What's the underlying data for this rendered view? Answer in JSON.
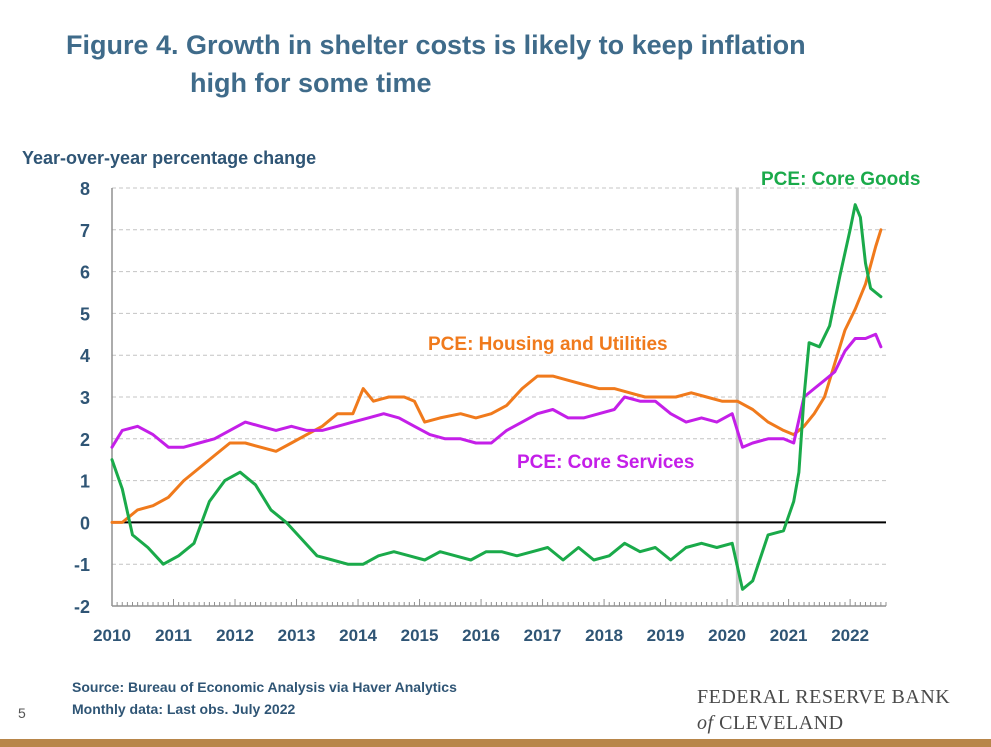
{
  "header": {
    "title_line1": "Figure 4. Growth in shelter costs is likely to keep inflation",
    "title_line2": "high for some time"
  },
  "footer": {
    "source": "Source: Bureau of Economic Analysis via Haver Analytics",
    "monthly": "Monthly data: Last obs. July 2022",
    "page_number": "5",
    "brand_line1": "FEDERAL RESERVE BANK",
    "brand_of": "of",
    "brand_line2": "CLEVELAND"
  },
  "chart_data": {
    "type": "line",
    "ylabel": "Year-over-year percentage change",
    "ylim": [
      -2,
      8
    ],
    "yticks": [
      -2,
      -1,
      0,
      1,
      2,
      3,
      4,
      5,
      6,
      7,
      8
    ],
    "xlim": [
      "2010-01",
      "2022-07"
    ],
    "xticks": [
      "2010",
      "2011",
      "2012",
      "2013",
      "2014",
      "2015",
      "2016",
      "2017",
      "2018",
      "2019",
      "2020",
      "2021",
      "2022"
    ],
    "grid": "horizontal dashed",
    "reference_line": {
      "y": 0,
      "color": "#000000"
    },
    "vertical_marker": {
      "x": "2020-03",
      "color": "#c8c8c8"
    },
    "series": [
      {
        "name": "PCE: Housing and Utilities",
        "color": "#f07a1c",
        "points": [
          [
            "2010-01",
            0.0
          ],
          [
            "2010-03",
            0.0
          ],
          [
            "2010-06",
            0.3
          ],
          [
            "2010-09",
            0.4
          ],
          [
            "2010-12",
            0.6
          ],
          [
            "2011-03",
            1.0
          ],
          [
            "2011-06",
            1.3
          ],
          [
            "2011-09",
            1.6
          ],
          [
            "2011-12",
            1.9
          ],
          [
            "2012-03",
            1.9
          ],
          [
            "2012-06",
            1.8
          ],
          [
            "2012-09",
            1.7
          ],
          [
            "2012-12",
            1.9
          ],
          [
            "2013-03",
            2.1
          ],
          [
            "2013-06",
            2.3
          ],
          [
            "2013-09",
            2.6
          ],
          [
            "2013-12",
            2.6
          ],
          [
            "2014-02",
            3.2
          ],
          [
            "2014-04",
            2.9
          ],
          [
            "2014-07",
            3.0
          ],
          [
            "2014-10",
            3.0
          ],
          [
            "2014-12",
            2.9
          ],
          [
            "2015-02",
            2.4
          ],
          [
            "2015-05",
            2.5
          ],
          [
            "2015-09",
            2.6
          ],
          [
            "2015-12",
            2.5
          ],
          [
            "2016-03",
            2.6
          ],
          [
            "2016-06",
            2.8
          ],
          [
            "2016-09",
            3.2
          ],
          [
            "2016-12",
            3.5
          ],
          [
            "2017-03",
            3.5
          ],
          [
            "2017-06",
            3.4
          ],
          [
            "2017-09",
            3.3
          ],
          [
            "2017-12",
            3.2
          ],
          [
            "2018-03",
            3.2
          ],
          [
            "2018-06",
            3.1
          ],
          [
            "2018-09",
            3.0
          ],
          [
            "2018-12",
            3.0
          ],
          [
            "2019-03",
            3.0
          ],
          [
            "2019-06",
            3.1
          ],
          [
            "2019-09",
            3.0
          ],
          [
            "2019-12",
            2.9
          ],
          [
            "2020-03",
            2.9
          ],
          [
            "2020-06",
            2.7
          ],
          [
            "2020-09",
            2.4
          ],
          [
            "2020-12",
            2.2
          ],
          [
            "2021-02",
            2.1
          ],
          [
            "2021-04",
            2.3
          ],
          [
            "2021-06",
            2.6
          ],
          [
            "2021-08",
            3.0
          ],
          [
            "2021-10",
            3.8
          ],
          [
            "2021-12",
            4.6
          ],
          [
            "2022-02",
            5.1
          ],
          [
            "2022-04",
            5.7
          ],
          [
            "2022-06",
            6.6
          ],
          [
            "2022-07",
            7.0
          ]
        ],
        "label_text": "PCE: Housing and Utilities"
      },
      {
        "name": "PCE: Core Services",
        "color": "#c41fe8",
        "points": [
          [
            "2010-01",
            1.8
          ],
          [
            "2010-03",
            2.2
          ],
          [
            "2010-06",
            2.3
          ],
          [
            "2010-09",
            2.1
          ],
          [
            "2010-12",
            1.8
          ],
          [
            "2011-03",
            1.8
          ],
          [
            "2011-06",
            1.9
          ],
          [
            "2011-09",
            2.0
          ],
          [
            "2011-12",
            2.2
          ],
          [
            "2012-03",
            2.4
          ],
          [
            "2012-06",
            2.3
          ],
          [
            "2012-09",
            2.2
          ],
          [
            "2012-12",
            2.3
          ],
          [
            "2013-03",
            2.2
          ],
          [
            "2013-06",
            2.2
          ],
          [
            "2013-09",
            2.3
          ],
          [
            "2013-12",
            2.4
          ],
          [
            "2014-03",
            2.5
          ],
          [
            "2014-06",
            2.6
          ],
          [
            "2014-09",
            2.5
          ],
          [
            "2014-12",
            2.3
          ],
          [
            "2015-03",
            2.1
          ],
          [
            "2015-06",
            2.0
          ],
          [
            "2015-09",
            2.0
          ],
          [
            "2015-12",
            1.9
          ],
          [
            "2016-03",
            1.9
          ],
          [
            "2016-06",
            2.2
          ],
          [
            "2016-09",
            2.4
          ],
          [
            "2016-12",
            2.6
          ],
          [
            "2017-03",
            2.7
          ],
          [
            "2017-06",
            2.5
          ],
          [
            "2017-09",
            2.5
          ],
          [
            "2017-12",
            2.6
          ],
          [
            "2018-03",
            2.7
          ],
          [
            "2018-05",
            3.0
          ],
          [
            "2018-08",
            2.9
          ],
          [
            "2018-11",
            2.9
          ],
          [
            "2019-02",
            2.6
          ],
          [
            "2019-05",
            2.4
          ],
          [
            "2019-08",
            2.5
          ],
          [
            "2019-11",
            2.4
          ],
          [
            "2020-02",
            2.6
          ],
          [
            "2020-04",
            1.8
          ],
          [
            "2020-06",
            1.9
          ],
          [
            "2020-09",
            2.0
          ],
          [
            "2020-12",
            2.0
          ],
          [
            "2021-02",
            1.9
          ],
          [
            "2021-04",
            3.0
          ],
          [
            "2021-06",
            3.2
          ],
          [
            "2021-08",
            3.4
          ],
          [
            "2021-10",
            3.6
          ],
          [
            "2021-12",
            4.1
          ],
          [
            "2022-02",
            4.4
          ],
          [
            "2022-04",
            4.4
          ],
          [
            "2022-06",
            4.5
          ],
          [
            "2022-07",
            4.2
          ]
        ],
        "label_text": "PCE: Core Services"
      },
      {
        "name": "PCE: Core Goods",
        "color": "#1aaa4a",
        "points": [
          [
            "2010-01",
            1.5
          ],
          [
            "2010-03",
            0.8
          ],
          [
            "2010-05",
            -0.3
          ],
          [
            "2010-08",
            -0.6
          ],
          [
            "2010-11",
            -1.0
          ],
          [
            "2011-02",
            -0.8
          ],
          [
            "2011-05",
            -0.5
          ],
          [
            "2011-08",
            0.5
          ],
          [
            "2011-11",
            1.0
          ],
          [
            "2012-02",
            1.2
          ],
          [
            "2012-05",
            0.9
          ],
          [
            "2012-08",
            0.3
          ],
          [
            "2012-11",
            0.0
          ],
          [
            "2013-02",
            -0.4
          ],
          [
            "2013-05",
            -0.8
          ],
          [
            "2013-08",
            -0.9
          ],
          [
            "2013-11",
            -1.0
          ],
          [
            "2014-02",
            -1.0
          ],
          [
            "2014-05",
            -0.8
          ],
          [
            "2014-08",
            -0.7
          ],
          [
            "2014-11",
            -0.8
          ],
          [
            "2015-02",
            -0.9
          ],
          [
            "2015-05",
            -0.7
          ],
          [
            "2015-08",
            -0.8
          ],
          [
            "2015-11",
            -0.9
          ],
          [
            "2016-02",
            -0.7
          ],
          [
            "2016-05",
            -0.7
          ],
          [
            "2016-08",
            -0.8
          ],
          [
            "2016-11",
            -0.7
          ],
          [
            "2017-02",
            -0.6
          ],
          [
            "2017-05",
            -0.9
          ],
          [
            "2017-08",
            -0.6
          ],
          [
            "2017-11",
            -0.9
          ],
          [
            "2018-02",
            -0.8
          ],
          [
            "2018-05",
            -0.5
          ],
          [
            "2018-08",
            -0.7
          ],
          [
            "2018-11",
            -0.6
          ],
          [
            "2019-02",
            -0.9
          ],
          [
            "2019-05",
            -0.6
          ],
          [
            "2019-08",
            -0.5
          ],
          [
            "2019-11",
            -0.6
          ],
          [
            "2020-02",
            -0.5
          ],
          [
            "2020-04",
            -1.6
          ],
          [
            "2020-06",
            -1.4
          ],
          [
            "2020-09",
            -0.3
          ],
          [
            "2020-12",
            -0.2
          ],
          [
            "2021-02",
            0.5
          ],
          [
            "2021-03",
            1.2
          ],
          [
            "2021-04",
            3.0
          ],
          [
            "2021-05",
            4.3
          ],
          [
            "2021-07",
            4.2
          ],
          [
            "2021-09",
            4.7
          ],
          [
            "2021-11",
            5.9
          ],
          [
            "2022-01",
            7.0
          ],
          [
            "2022-02",
            7.6
          ],
          [
            "2022-03",
            7.3
          ],
          [
            "2022-04",
            6.2
          ],
          [
            "2022-05",
            5.6
          ],
          [
            "2022-06",
            5.5
          ],
          [
            "2022-07",
            5.4
          ]
        ],
        "label_text": "PCE: Core Goods"
      }
    ]
  }
}
